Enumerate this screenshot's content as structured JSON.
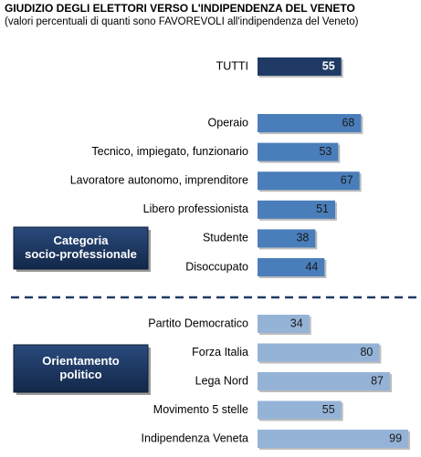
{
  "chart_data": {
    "type": "bar",
    "orientation": "horizontal",
    "title": "GIUDIZIO DEGLI ELETTORI VERSO L'INDIPENDENZA DEL VENETO",
    "subtitle": "(valori percentuali di quanti sono FAVOREVOLI  all'indipendenza del Veneto)",
    "categories": [
      "TUTTI",
      "Operaio",
      "Tecnico, impiegato, funzionario",
      "Lavoratore autonomo, imprenditore",
      "Libero professionista",
      "Studente",
      "Disoccupato",
      "Partito Democratico",
      "Forza Italia",
      "Lega Nord",
      "Movimento 5 stelle",
      "Indipendenza Veneta"
    ],
    "values": [
      55,
      68,
      53,
      67,
      51,
      38,
      44,
      34,
      80,
      87,
      55,
      99
    ],
    "colors": [
      "#1f3a64",
      "#4a7ebb",
      "#4a7ebb",
      "#4a7ebb",
      "#4a7ebb",
      "#4a7ebb",
      "#4a7ebb",
      "#95b3d7",
      "#95b3d7",
      "#95b3d7",
      "#95b3d7",
      "#95b3d7"
    ],
    "groups": [
      {
        "label": [
          "Categoria",
          "socio-professionale"
        ]
      },
      {
        "label": [
          "Orientamento",
          "politico"
        ]
      }
    ]
  }
}
